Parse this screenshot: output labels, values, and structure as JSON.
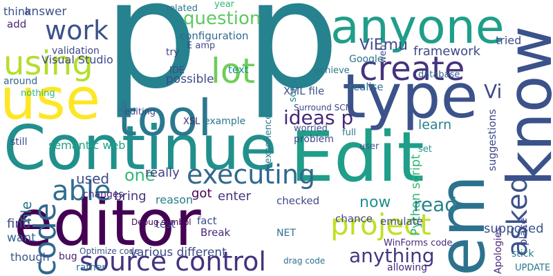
{
  "words": [
    {
      "text": "p p",
      "color": "#26828e"
    },
    {
      "text": "Continue",
      "color": "#21908d"
    },
    {
      "text": "Edit",
      "color": "#1f9e89"
    },
    {
      "text": "editor",
      "color": "#440154"
    },
    {
      "text": "source control",
      "color": "#46327e"
    },
    {
      "text": "use",
      "color": "#fde725"
    },
    {
      "text": "tool",
      "color": "#2a788e"
    },
    {
      "text": "type",
      "color": "#3b528b"
    },
    {
      "text": "anyone",
      "color": "#1f9e89"
    },
    {
      "text": "know",
      "color": "#3b528b"
    },
    {
      "text": "em",
      "color": "#2c728e"
    },
    {
      "text": "code",
      "color": "#31688e"
    },
    {
      "text": "using",
      "color": "#b5de2b"
    },
    {
      "text": "work",
      "color": "#3b528b"
    },
    {
      "text": "lot",
      "color": "#6ece58"
    },
    {
      "text": "question",
      "color": "#5ec962"
    },
    {
      "text": "create",
      "color": "#46327e"
    },
    {
      "text": "project",
      "color": "#c2df23"
    },
    {
      "text": "executing",
      "color": "#31688e"
    },
    {
      "text": "able",
      "color": "#2e6e8e"
    },
    {
      "text": "anything",
      "color": "#453781"
    },
    {
      "text": "asked",
      "color": "#3b528b"
    },
    {
      "text": "framework",
      "color": "#3e4989"
    },
    {
      "text": "Python script",
      "color": "#35b779"
    },
    {
      "text": "ideas p",
      "color": "#482878"
    },
    {
      "text": "learn",
      "color": "#277f8e"
    },
    {
      "text": "read",
      "color": "#26828e"
    },
    {
      "text": "now",
      "color": "#21918c"
    },
    {
      "text": "file",
      "color": "#2a788e"
    },
    {
      "text": "find",
      "color": "#3e4989"
    },
    {
      "text": "want",
      "color": "#31688e"
    },
    {
      "text": "though",
      "color": "#3b528b"
    },
    {
      "text": "bug",
      "color": "#482475"
    },
    {
      "text": "one",
      "color": "#35b779"
    },
    {
      "text": "used",
      "color": "#3e4989"
    },
    {
      "text": "bring",
      "color": "#46327e"
    },
    {
      "text": "really",
      "color": "#433e85"
    },
    {
      "text": "got",
      "color": "#440154"
    },
    {
      "text": "enter",
      "color": "#46327e"
    },
    {
      "text": "reason",
      "color": "#287c8e"
    },
    {
      "text": "test",
      "color": "#3e4989"
    },
    {
      "text": "fact",
      "color": "#3e4989"
    },
    {
      "text": "Break",
      "color": "#482878"
    },
    {
      "text": "checked",
      "color": "#3e4989"
    },
    {
      "text": "NET",
      "color": "#2c728e"
    },
    {
      "text": "possible",
      "color": "#3e4989"
    },
    {
      "text": "configuration",
      "color": "#31688e"
    },
    {
      "text": "Visual Studio",
      "color": "#3e4989"
    },
    {
      "text": "validation",
      "color": "#3e4989"
    },
    {
      "text": "answer",
      "color": "#3b528b"
    },
    {
      "text": "think",
      "color": "#3b528b"
    },
    {
      "text": "add",
      "color": "#482878"
    },
    {
      "text": "text",
      "color": "#21918c"
    },
    {
      "text": "example",
      "color": "#2a788e"
    },
    {
      "text": "XSL",
      "color": "#482878"
    },
    {
      "text": "XML file",
      "color": "#3b528b"
    },
    {
      "text": "experience",
      "color": "#2a788e"
    },
    {
      "text": "ViEmu",
      "color": "#3e4989"
    },
    {
      "text": "Google",
      "color": "#2c728e"
    },
    {
      "text": "realise",
      "color": "#2c728e"
    },
    {
      "text": "sort",
      "color": "#26828e"
    },
    {
      "text": "Vi",
      "color": "#3e4989"
    },
    {
      "text": "suggestions",
      "color": "#3e4989"
    },
    {
      "text": "tried",
      "color": "#3e4989"
    },
    {
      "text": "UPDATE",
      "color": "#2a788e"
    },
    {
      "text": "stick",
      "color": "#2a788e"
    },
    {
      "text": "place",
      "color": "#3e4989"
    },
    {
      "text": "Apologies",
      "color": "#482878"
    },
    {
      "text": "allowing",
      "color": "#482878"
    },
    {
      "text": "chance",
      "color": "#3e4989"
    },
    {
      "text": "emulate",
      "color": "#3e4989"
    },
    {
      "text": "user",
      "color": "#3b528b"
    },
    {
      "text": "full",
      "color": "#2c728e"
    },
    {
      "text": "IDE",
      "color": "#3e4989"
    },
    {
      "text": "semantic web",
      "color": "#1fa187"
    },
    {
      "text": "editing",
      "color": "#3e4989"
    },
    {
      "text": "still",
      "color": "#3e4989"
    },
    {
      "text": "around",
      "color": "#31688e"
    },
    {
      "text": "nothing",
      "color": "#35b779"
    },
    {
      "text": "related",
      "color": "#2c728e"
    },
    {
      "text": "year",
      "color": "#35b779"
    },
    {
      "text": "Debug symbol",
      "color": "#440154"
    },
    {
      "text": "WinForms code",
      "color": "#482878"
    },
    {
      "text": "various different",
      "color": "#3e4989"
    },
    {
      "text": "Optimize code",
      "color": "#3b528b"
    },
    {
      "text": "rather",
      "color": "#2a788e"
    },
    {
      "text": "changes",
      "color": "#482878"
    },
    {
      "text": "problem",
      "color": "#3e4989"
    },
    {
      "text": "worried",
      "color": "#3b528b"
    },
    {
      "text": "drag code",
      "color": "#2c728e"
    },
    {
      "text": "Surround SCM",
      "color": "#3e4989"
    },
    {
      "text": "database",
      "color": "#31688e"
    },
    {
      "text": "web",
      "color": "#3e4989"
    },
    {
      "text": "supposed",
      "color": "#3b528b"
    },
    {
      "text": "set",
      "color": "#21918c"
    },
    {
      "text": "E amp",
      "color": "#3e4989"
    },
    {
      "text": "try",
      "color": "#3e4989"
    },
    {
      "text": "achieve",
      "color": "#2a788e"
    }
  ]
}
